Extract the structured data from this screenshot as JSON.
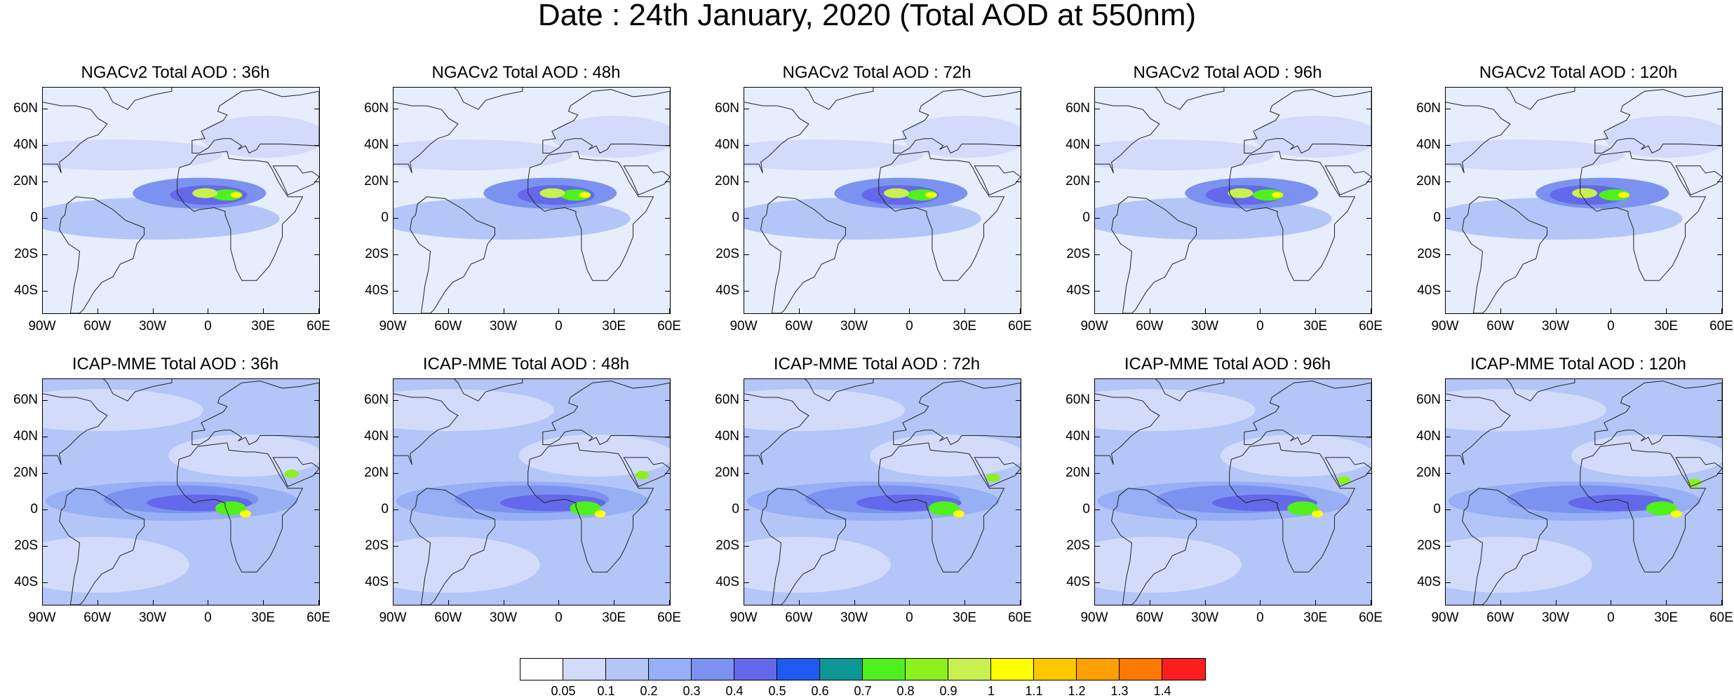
{
  "title": "Date : 24th January, 2020 (Total AOD at 550nm)",
  "lat_labels": [
    "60N",
    "40N",
    "20N",
    "0",
    "20S",
    "40S"
  ],
  "lon_labels": [
    "90W",
    "60W",
    "30W",
    "0",
    "30E",
    "60E"
  ],
  "panels": [
    {
      "title": "NGACv2 Total AOD : 36h",
      "model": "ngac",
      "hours": 36
    },
    {
      "title": "NGACv2 Total AOD : 48h",
      "model": "ngac",
      "hours": 48
    },
    {
      "title": "NGACv2 Total AOD : 72h",
      "model": "ngac",
      "hours": 72
    },
    {
      "title": "NGACv2 Total AOD : 96h",
      "model": "ngac",
      "hours": 96
    },
    {
      "title": "NGACv2 Total AOD : 120h",
      "model": "ngac",
      "hours": 120
    },
    {
      "title": "ICAP-MME Total AOD : 36h",
      "model": "icap",
      "hours": 36
    },
    {
      "title": "ICAP-MME Total AOD : 48h",
      "model": "icap",
      "hours": 48
    },
    {
      "title": "ICAP-MME Total AOD : 72h",
      "model": "icap",
      "hours": 72
    },
    {
      "title": "ICAP-MME Total AOD : 96h",
      "model": "icap",
      "hours": 96
    },
    {
      "title": "ICAP-MME Total AOD : 120h",
      "model": "icap",
      "hours": 120
    }
  ],
  "colorbar": {
    "labels": [
      "0.05",
      "0.1",
      "0.2",
      "0.3",
      "0.4",
      "0.5",
      "0.6",
      "0.7",
      "0.8",
      "0.9",
      "1",
      "1.1",
      "1.2",
      "1.3",
      "1.4"
    ],
    "colors": [
      "#ffffff",
      "#d2dcfa",
      "#b4c6f7",
      "#96aff5",
      "#7c92f0",
      "#6469eb",
      "#1e5af0",
      "#0f9696",
      "#50f01e",
      "#8cf01e",
      "#c8f050",
      "#ffff00",
      "#ffc800",
      "#ffa000",
      "#ff7800",
      "#ff1e1e"
    ]
  }
}
